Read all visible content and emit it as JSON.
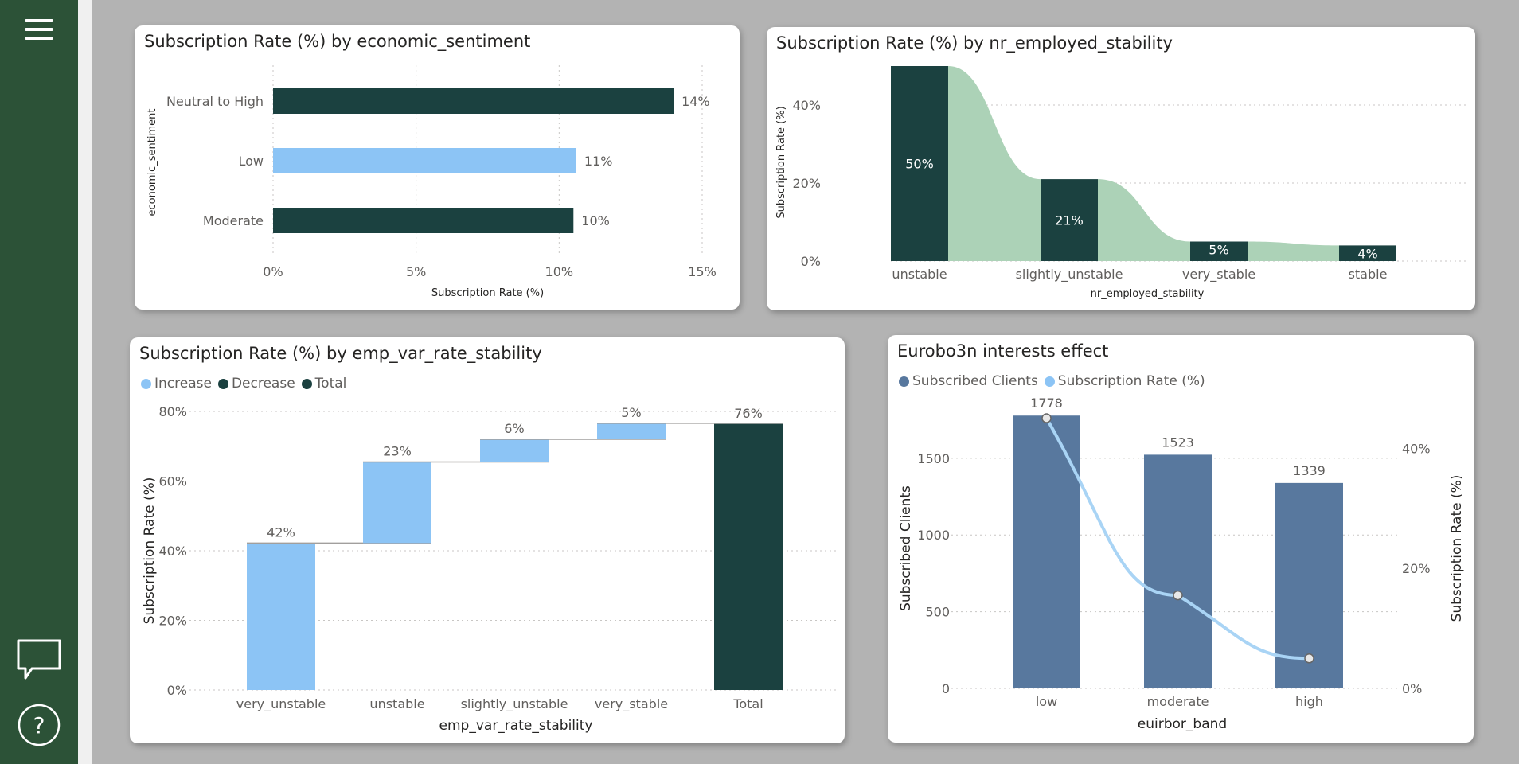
{
  "sidebar": {
    "menu_icon": "hamburger-menu-icon",
    "comment_icon": "speech-bubble-icon",
    "help_icon": "help-question-icon",
    "help_glyph": "?",
    "background": "#2c5237"
  },
  "colors": {
    "dark": "#1b4140",
    "light": "#8cc4f5",
    "ribbon": "#acd2b7",
    "navy": "#58789e",
    "line": "#a9d4f5"
  },
  "chart_data": [
    {
      "type": "bar",
      "orientation": "horizontal",
      "title": "Subscription Rate (%) by economic_sentiment",
      "xlabel": "Subscription Rate (%)",
      "ylabel": "economic_sentiment",
      "categories": [
        "Neutral to High",
        "Low",
        "Moderate"
      ],
      "values": [
        14,
        10.6,
        10.5
      ],
      "data_labels": [
        "14%",
        "11%",
        "10%"
      ],
      "colors": [
        "#1b4140",
        "#8cc4f5",
        "#1b4140"
      ],
      "xlim": [
        0,
        15
      ],
      "xticks": [
        "0%",
        "5%",
        "10%",
        "15%"
      ],
      "grid": "vertical dotted"
    },
    {
      "type": "bar",
      "variant": "ribbon",
      "title": "Subscription Rate (%) by nr_employed_stability",
      "xlabel": "nr_employed_stability",
      "ylabel": "Subscription Rate (%)",
      "categories": [
        "unstable",
        "slightly_unstable",
        "very_stable",
        "stable"
      ],
      "values": [
        50,
        21,
        5,
        4
      ],
      "data_labels": [
        "50%",
        "21%",
        "5%",
        "4%"
      ],
      "ylim": [
        0,
        50
      ],
      "yticks": [
        "0%",
        "20%",
        "40%"
      ],
      "grid": "horizontal dotted"
    },
    {
      "type": "bar",
      "variant": "waterfall",
      "title": "Subscription Rate (%) by emp_var_rate_stability",
      "xlabel": "emp_var_rate_stability",
      "ylabel": "Subscription Rate (%)",
      "legend": [
        "Increase",
        "Decrease",
        "Total"
      ],
      "legend_colors": [
        "#8cc4f5",
        "#1b4140",
        "#1b4140"
      ],
      "categories": [
        "very_unstable",
        "unstable",
        "slightly_unstable",
        "very_stable",
        "Total"
      ],
      "values": [
        42.2,
        23.3,
        6.5,
        4.6,
        76.4
      ],
      "data_labels": [
        "42%",
        "23%",
        "6%",
        "5%",
        "76%"
      ],
      "ylim": [
        0,
        80
      ],
      "yticks": [
        "0%",
        "20%",
        "40%",
        "60%",
        "80%"
      ],
      "grid": "horizontal dotted"
    },
    {
      "type": "bar",
      "variant": "bar+line combo",
      "title": "Eurobo3n interests effect",
      "xlabel": "euirbor_band",
      "ylabel": "Subscribed Clients",
      "y2label": "Subscription Rate (%)",
      "legend": [
        "Subscribed Clients",
        "Subscription Rate (%)"
      ],
      "legend_colors": [
        "#58789e",
        "#8cc4f5"
      ],
      "categories": [
        "low",
        "moderate",
        "high"
      ],
      "series": [
        {
          "name": "Subscribed Clients",
          "type": "bar",
          "axis": "left",
          "values": [
            1778,
            1523,
            1339
          ],
          "data_labels": [
            "1778",
            "1523",
            "1339"
          ]
        },
        {
          "name": "Subscription Rate (%)",
          "type": "line",
          "axis": "right",
          "values": [
            45,
            15.5,
            5
          ]
        }
      ],
      "ylim": [
        0,
        1800
      ],
      "yticks": [
        "0",
        "500",
        "1000",
        "1500"
      ],
      "y2lim": [
        0,
        46
      ],
      "y2ticks": [
        "0%",
        "20%",
        "40%"
      ],
      "grid": "horizontal dotted"
    }
  ]
}
